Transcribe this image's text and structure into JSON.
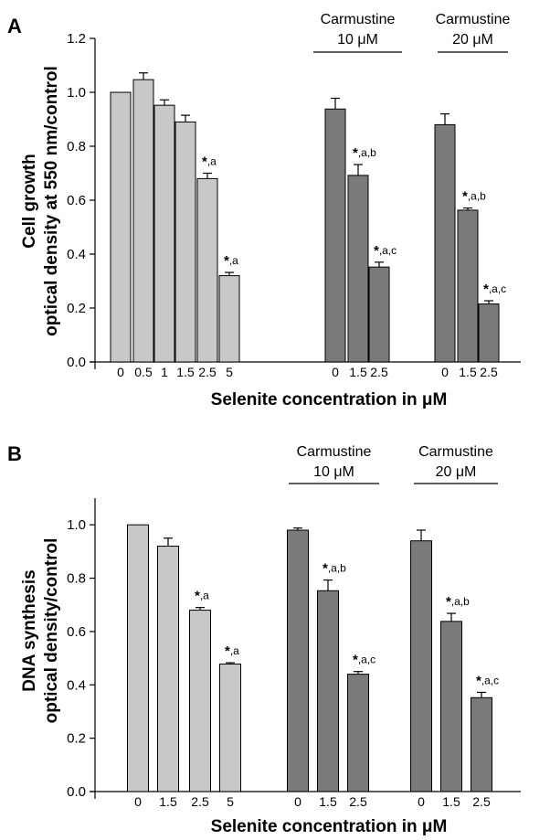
{
  "chart_data": [
    {
      "type": "bar",
      "panel": "A",
      "ylabel_line1": "Cell growth",
      "ylabel_line2": "optical density at 550 nm/control",
      "xlabel": "Selenite concentration in μM",
      "ylim": [
        0,
        1.2
      ],
      "yticks": [
        "0.0",
        "0.2",
        "0.4",
        "0.6",
        "0.8",
        "1.0",
        "1.2"
      ],
      "grid": false,
      "group_labels": [
        {
          "line1": "Carmustine",
          "line2": "10 μM"
        },
        {
          "line1": "Carmustine",
          "line2": "20 μM"
        }
      ],
      "groups": [
        {
          "color": "#c8c8c8",
          "categories": [
            "0",
            "0.5",
            "1",
            "1.5",
            "2.5",
            "5"
          ],
          "values": [
            1.0,
            1.047,
            0.952,
            0.89,
            0.68,
            0.32
          ],
          "errors": [
            0.0,
            0.025,
            0.02,
            0.025,
            0.02,
            0.012
          ],
          "annotations": [
            "",
            "",
            "",
            "",
            "a",
            "a"
          ]
        },
        {
          "color": "#7a7a7a",
          "categories": [
            "0",
            "1.5",
            "2.5"
          ],
          "values": [
            0.938,
            0.692,
            0.352
          ],
          "errors": [
            0.04,
            0.04,
            0.018
          ],
          "annotations": [
            "",
            "a,b",
            "a,c"
          ]
        },
        {
          "color": "#7a7a7a",
          "categories": [
            "0",
            "1.5",
            "2.5"
          ],
          "values": [
            0.88,
            0.563,
            0.215
          ],
          "errors": [
            0.04,
            0.008,
            0.012
          ],
          "annotations": [
            "",
            "a,b",
            "a,c"
          ]
        }
      ]
    },
    {
      "type": "bar",
      "panel": "B",
      "ylabel_line1": "DNA synthesis",
      "ylabel_line2": "optical density/control",
      "xlabel": "Selenite concentration in μM",
      "ylim": [
        0,
        1.1
      ],
      "yticks": [
        "0.0",
        "0.2",
        "0.4",
        "0.6",
        "0.8",
        "1.0"
      ],
      "grid": false,
      "group_labels": [
        {
          "line1": "Carmustine",
          "line2": "10 μM"
        },
        {
          "line1": "Carmustine",
          "line2": "20 μM"
        }
      ],
      "groups": [
        {
          "color": "#c8c8c8",
          "categories": [
            "0",
            "1.5",
            "2.5",
            "5"
          ],
          "values": [
            1.0,
            0.92,
            0.68,
            0.478
          ],
          "errors": [
            0.0,
            0.03,
            0.01,
            0.005
          ],
          "annotations": [
            "",
            "",
            "a",
            "a"
          ]
        },
        {
          "color": "#7a7a7a",
          "categories": [
            "0",
            "1.5",
            "2.5"
          ],
          "values": [
            0.98,
            0.753,
            0.44
          ],
          "errors": [
            0.008,
            0.04,
            0.01
          ],
          "annotations": [
            "",
            "a,b",
            "a,c"
          ]
        },
        {
          "color": "#7a7a7a",
          "categories": [
            "0",
            "1.5",
            "2.5"
          ],
          "values": [
            0.94,
            0.638,
            0.352
          ],
          "errors": [
            0.04,
            0.03,
            0.02
          ],
          "annotations": [
            "",
            "a,b",
            "a,c"
          ]
        }
      ]
    }
  ]
}
